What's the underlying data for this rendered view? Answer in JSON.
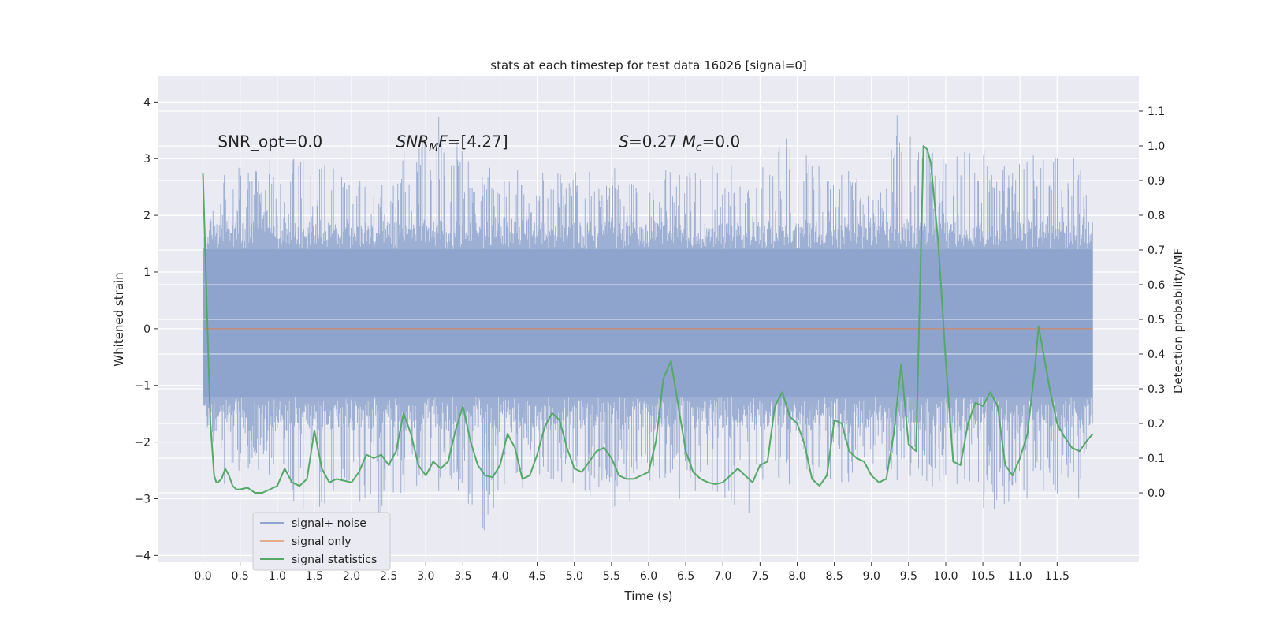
{
  "chart_data": {
    "type": "line",
    "title": "stats at each timestep for test data 16026 [signal=0]",
    "xlabel": "Time (s)",
    "ylabel": "Whitened strain",
    "y2label": "Detection probability/MF",
    "xlim": [
      -0.6,
      12.6
    ],
    "ylim": [
      -4.12,
      4.45
    ],
    "y2lim": [
      -0.2,
      1.2
    ],
    "xticks": [
      0.0,
      0.5,
      1.0,
      1.5,
      2.0,
      2.5,
      3.0,
      3.5,
      4.0,
      4.5,
      5.0,
      5.5,
      6.0,
      6.5,
      7.0,
      7.5,
      8.0,
      8.5,
      9.0,
      9.5,
      10.0,
      10.5,
      11.0,
      11.5
    ],
    "xtick_labels": [
      "0.0",
      "0.5",
      "1.0",
      "1.5",
      "2.0",
      "2.5",
      "3.0",
      "3.5",
      "4.0",
      "4.5",
      "5.0",
      "5.5",
      "6.0",
      "6.5",
      "7.0",
      "7.5",
      "8.0",
      "8.5",
      "9.0",
      "9.5",
      "10.0",
      "10.5",
      "11.0",
      "11.5"
    ],
    "yticks": [
      4,
      3,
      2,
      1,
      0,
      -1,
      -2,
      -3,
      -4
    ],
    "ytick_labels": [
      "4",
      "3",
      "2",
      "1",
      "0",
      "−1",
      "−2",
      "−3",
      "−4"
    ],
    "y2ticks": [
      1.1,
      1.0,
      0.9,
      0.8,
      0.7,
      0.6,
      0.5,
      0.4,
      0.3,
      0.2,
      0.1,
      0.0
    ],
    "y2tick_labels": [
      "1.1",
      "1.0",
      "0.9",
      "0.8",
      "0.7",
      "0.6",
      "0.5",
      "0.4",
      "0.3",
      "0.2",
      "0.1",
      "0.0"
    ],
    "grid": true,
    "legend_position": "lower-left",
    "annotations": [
      {
        "text": "SNR_opt=0.0",
        "x": 0.2,
        "y": 3.3
      },
      {
        "text": "SNR_MF=[4.27]",
        "x": 2.6,
        "y": 3.3
      },
      {
        "text": "S=0.27   M_c=0.0",
        "x": 5.6,
        "y": 3.3
      }
    ],
    "series": [
      {
        "name": "signal+ noise",
        "color": "#8fa4cc",
        "axis": "left",
        "t_start": 0.0,
        "t_end": 11.98,
        "outline_x": [
          0.0,
          0.3,
          0.6,
          0.9,
          1.2,
          1.3,
          1.5,
          1.8,
          2.1,
          2.4,
          2.7,
          3.0,
          3.2,
          3.5,
          3.8,
          4.1,
          4.4,
          4.7,
          5.0,
          5.3,
          5.6,
          5.9,
          6.2,
          6.5,
          6.8,
          7.1,
          7.4,
          7.7,
          8.0,
          8.3,
          8.6,
          8.9,
          9.2,
          9.4,
          9.7,
          10.0,
          10.3,
          10.6,
          10.9,
          11.2,
          11.5,
          11.8,
          11.98
        ],
        "outline_max": [
          1.6,
          3.1,
          2.9,
          3.0,
          2.9,
          3.9,
          3.0,
          2.8,
          3.0,
          2.7,
          3.1,
          3.5,
          4.0,
          3.1,
          2.8,
          3.1,
          2.7,
          2.9,
          3.0,
          2.7,
          3.0,
          2.7,
          2.8,
          2.9,
          3.0,
          2.9,
          2.8,
          3.6,
          3.2,
          2.9,
          3.0,
          3.1,
          3.0,
          4.1,
          3.3,
          3.0,
          3.3,
          3.1,
          3.0,
          3.3,
          3.0,
          3.2,
          1.6
        ],
        "outline_min": [
          -1.6,
          -3.0,
          -2.6,
          -2.8,
          -3.1,
          -3.3,
          -3.4,
          -2.8,
          -3.2,
          -3.7,
          -3.0,
          -2.8,
          -3.1,
          -3.0,
          -3.6,
          -3.1,
          -2.8,
          -2.7,
          -2.9,
          -3.0,
          -3.3,
          -2.8,
          -2.8,
          -3.1,
          -2.9,
          -3.1,
          -3.4,
          -2.8,
          -2.9,
          -2.8,
          -3.0,
          -2.9,
          -2.9,
          -2.7,
          -2.8,
          -2.8,
          -2.9,
          -3.3,
          -3.0,
          -3.0,
          -3.1,
          -3.0,
          -1.6
        ]
      },
      {
        "name": "signal only",
        "color": "#dd8452",
        "axis": "left",
        "x": [
          0.0,
          11.98
        ],
        "y": [
          0.0,
          0.0
        ]
      },
      {
        "name": "signal statistics",
        "color": "#55a868",
        "axis": "right",
        "x": [
          0.0,
          0.05,
          0.1,
          0.15,
          0.18,
          0.2,
          0.25,
          0.3,
          0.35,
          0.4,
          0.45,
          0.5,
          0.6,
          0.7,
          0.8,
          0.9,
          1.0,
          1.1,
          1.2,
          1.3,
          1.4,
          1.5,
          1.6,
          1.7,
          1.8,
          1.9,
          2.0,
          2.1,
          2.2,
          2.3,
          2.4,
          2.5,
          2.6,
          2.7,
          2.8,
          2.9,
          3.0,
          3.1,
          3.2,
          3.3,
          3.4,
          3.5,
          3.6,
          3.7,
          3.8,
          3.9,
          4.0,
          4.1,
          4.2,
          4.3,
          4.4,
          4.5,
          4.6,
          4.7,
          4.8,
          4.9,
          5.0,
          5.1,
          5.2,
          5.3,
          5.4,
          5.5,
          5.6,
          5.7,
          5.8,
          5.9,
          6.0,
          6.1,
          6.2,
          6.3,
          6.4,
          6.5,
          6.6,
          6.7,
          6.8,
          6.9,
          7.0,
          7.1,
          7.2,
          7.3,
          7.4,
          7.5,
          7.6,
          7.7,
          7.8,
          7.9,
          8.0,
          8.1,
          8.2,
          8.3,
          8.4,
          8.5,
          8.6,
          8.7,
          8.8,
          8.9,
          9.0,
          9.1,
          9.2,
          9.3,
          9.4,
          9.5,
          9.6,
          9.7,
          9.75,
          9.8,
          9.9,
          10.0,
          10.1,
          10.2,
          10.3,
          10.4,
          10.5,
          10.6,
          10.7,
          10.8,
          10.9,
          11.0,
          11.1,
          11.2,
          11.25,
          11.3,
          11.4,
          11.5,
          11.6,
          11.7,
          11.8,
          11.9,
          11.98
        ],
        "y": [
          0.92,
          0.55,
          0.2,
          0.05,
          0.03,
          0.03,
          0.04,
          0.07,
          0.05,
          0.02,
          0.01,
          0.01,
          0.015,
          0.0,
          0.0,
          0.01,
          0.02,
          0.07,
          0.03,
          0.02,
          0.04,
          0.18,
          0.07,
          0.03,
          0.04,
          0.035,
          0.03,
          0.06,
          0.11,
          0.1,
          0.11,
          0.08,
          0.12,
          0.23,
          0.17,
          0.08,
          0.05,
          0.09,
          0.07,
          0.09,
          0.18,
          0.25,
          0.15,
          0.08,
          0.05,
          0.045,
          0.08,
          0.17,
          0.13,
          0.04,
          0.05,
          0.11,
          0.19,
          0.23,
          0.21,
          0.13,
          0.07,
          0.06,
          0.09,
          0.12,
          0.13,
          0.1,
          0.05,
          0.04,
          0.04,
          0.05,
          0.06,
          0.15,
          0.33,
          0.38,
          0.25,
          0.12,
          0.06,
          0.04,
          0.03,
          0.025,
          0.03,
          0.05,
          0.07,
          0.05,
          0.03,
          0.08,
          0.09,
          0.25,
          0.29,
          0.22,
          0.2,
          0.14,
          0.04,
          0.02,
          0.05,
          0.21,
          0.2,
          0.12,
          0.1,
          0.09,
          0.05,
          0.03,
          0.04,
          0.17,
          0.37,
          0.14,
          0.12,
          1.0,
          0.99,
          0.95,
          0.72,
          0.38,
          0.09,
          0.08,
          0.2,
          0.26,
          0.25,
          0.29,
          0.25,
          0.08,
          0.05,
          0.1,
          0.17,
          0.36,
          0.48,
          0.42,
          0.3,
          0.2,
          0.16,
          0.13,
          0.12,
          0.15,
          0.17
        ]
      }
    ]
  }
}
